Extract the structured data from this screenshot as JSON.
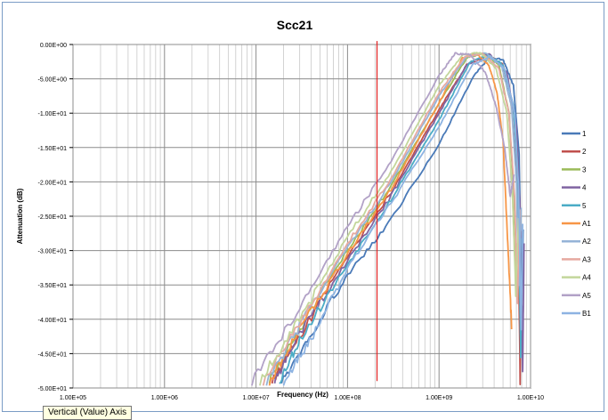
{
  "colors": {
    "frame_border": "#7a9cc5",
    "marker": "#e02020"
  },
  "tooltip": "Vertical (Value) Axis",
  "chart_data": {
    "type": "line",
    "title": "Scc21",
    "xlabel": "Frequency (Hz)",
    "ylabel": "Attenuation (dB)",
    "x_scale": "log",
    "xlim": [
      100000,
      10000000000
    ],
    "ylim": [
      -50,
      0
    ],
    "x_ticks": [
      {
        "v": 100000,
        "label": "1.00E+05"
      },
      {
        "v": 1000000,
        "label": "1.00E+06"
      },
      {
        "v": 10000000,
        "label": "1.00E+07"
      },
      {
        "v": 100000000,
        "label": "1.00E+08"
      },
      {
        "v": 1000000000,
        "label": "1.00E+09"
      },
      {
        "v": 10000000000,
        "label": "1.00E+10"
      }
    ],
    "y_ticks": [
      {
        "v": 0,
        "label": "0.00E+00"
      },
      {
        "v": -5,
        "label": "-5.00E+00"
      },
      {
        "v": -10,
        "label": "-1.00E+01"
      },
      {
        "v": -15,
        "label": "-1.50E+01"
      },
      {
        "v": -20,
        "label": "-2.00E+01"
      },
      {
        "v": -25,
        "label": "-2.50E+01"
      },
      {
        "v": -30,
        "label": "-3.00E+01"
      },
      {
        "v": -35,
        "label": "-3.50E+01"
      },
      {
        "v": -40,
        "label": "-4.00E+01"
      },
      {
        "v": -45,
        "label": "-4.50E+01"
      },
      {
        "v": -50,
        "label": "-5.00E+01"
      }
    ],
    "grid": true,
    "legend_position": "right",
    "marker_line": {
      "x": 210000000,
      "y_range": [
        -49,
        0.5
      ],
      "color": "#e02020"
    },
    "series": [
      {
        "name": "1",
        "color": "#4a7ab8",
        "x": [
          19000000,
          40000000,
          100000000,
          300000000,
          1000000000,
          2400000000,
          3500000000,
          5000000000,
          6500000000,
          7500000000,
          8000000000,
          8300000000
        ],
        "y": [
          -49,
          -42,
          -33.5,
          -25.5,
          -14.5,
          -4.5,
          -2,
          -2.2,
          -6,
          -16,
          -38,
          -27
        ]
      },
      {
        "name": "2",
        "color": "#c0504d",
        "x": [
          15000000,
          30000000,
          100000000,
          300000000,
          1000000000,
          2000000000,
          3500000000,
          5000000000,
          6500000000,
          7200000000,
          7700000000,
          8000000000
        ],
        "y": [
          -49,
          -42.5,
          -31,
          -21.5,
          -9.5,
          -3,
          -1.5,
          -3,
          -9,
          -20,
          -49,
          -27
        ]
      },
      {
        "name": "3",
        "color": "#9bbb59",
        "x": [
          14000000,
          30000000,
          100000000,
          300000000,
          1000000000,
          2000000000,
          3000000000,
          4500000000,
          5800000000,
          6600000000,
          7200000000,
          7800000000
        ],
        "y": [
          -49,
          -41.5,
          -30,
          -20.5,
          -8.5,
          -2,
          -1.2,
          -3,
          -10,
          -22,
          -37,
          -26
        ]
      },
      {
        "name": "4",
        "color": "#8064a2",
        "x": [
          16000000,
          30000000,
          100000000,
          300000000,
          1000000000,
          2000000000,
          3500000000,
          5500000000,
          7000000000,
          7800000000,
          8200000000,
          8500000000
        ],
        "y": [
          -49,
          -42,
          -31.5,
          -22,
          -10,
          -3,
          -1.3,
          -4,
          -12,
          -26,
          -48,
          -29
        ]
      },
      {
        "name": "5",
        "color": "#4bacc6",
        "x": [
          18000000,
          30000000,
          100000000,
          300000000,
          1000000000,
          2200000000,
          3500000000,
          5000000000,
          6500000000,
          7300000000,
          7800000000,
          8100000000
        ],
        "y": [
          -49,
          -43,
          -32,
          -22.5,
          -11,
          -2.5,
          -1.5,
          -3,
          -9,
          -20,
          -45,
          -28
        ]
      },
      {
        "name": "A1",
        "color": "#f79646",
        "x": [
          14000000,
          30000000,
          100000000,
          300000000,
          1000000000,
          1800000000,
          2500000000,
          3500000000,
          4300000000,
          5000000000,
          5600000000,
          6200000000
        ],
        "y": [
          -49,
          -41.5,
          -30.5,
          -21,
          -8.5,
          -2,
          -1.2,
          -3,
          -7,
          -14,
          -28,
          -41
        ]
      },
      {
        "name": "A2",
        "color": "#95b3d7",
        "x": [
          13000000,
          30000000,
          100000000,
          300000000,
          1000000000,
          2000000000,
          3200000000,
          4800000000,
          6200000000,
          7000000000,
          7500000000,
          7900000000
        ],
        "y": [
          -49,
          -41,
          -29.5,
          -20,
          -7.5,
          -1.8,
          -1.2,
          -3,
          -9,
          -20,
          -35,
          -24
        ]
      },
      {
        "name": "A3",
        "color": "#e6a9a0",
        "x": [
          12000000,
          30000000,
          100000000,
          300000000,
          1000000000,
          1900000000,
          3000000000,
          4500000000,
          5800000000,
          6700000000,
          7200000000,
          7600000000
        ],
        "y": [
          -49,
          -40.5,
          -29,
          -19.5,
          -7,
          -1.8,
          -1.3,
          -3.5,
          -10,
          -22,
          -38,
          -24
        ]
      },
      {
        "name": "A4",
        "color": "#c3d69b",
        "x": [
          11000000,
          30000000,
          100000000,
          300000000,
          1000000000,
          1800000000,
          2800000000,
          4200000000,
          5500000000,
          6300000000,
          6900000000,
          7400000000
        ],
        "y": [
          -49,
          -40,
          -28,
          -18.5,
          -6,
          -1.5,
          -1.2,
          -3.5,
          -10,
          -21,
          -36,
          -25
        ]
      },
      {
        "name": "A5",
        "color": "#b2a2c7",
        "x": [
          9000000,
          30000000,
          100000000,
          300000000,
          1000000000,
          1500000000,
          2200000000,
          3200000000,
          4200000000,
          5200000000,
          6000000000,
          6600000000
        ],
        "y": [
          -49,
          -38.5,
          -26.5,
          -17,
          -4.5,
          -1.3,
          -1.5,
          -4,
          -9,
          -15,
          -22,
          -19
        ]
      },
      {
        "name": "B1",
        "color": "#8db3e2",
        "x": [
          20000000,
          40000000,
          100000000,
          300000000,
          1000000000,
          2300000000,
          3600000000,
          5200000000,
          6700000000,
          7400000000,
          7900000000,
          8200000000
        ],
        "y": [
          -49,
          -43,
          -32.5,
          -23,
          -12,
          -3,
          -1.8,
          -3.5,
          -10,
          -21,
          -42,
          -26
        ]
      }
    ]
  }
}
